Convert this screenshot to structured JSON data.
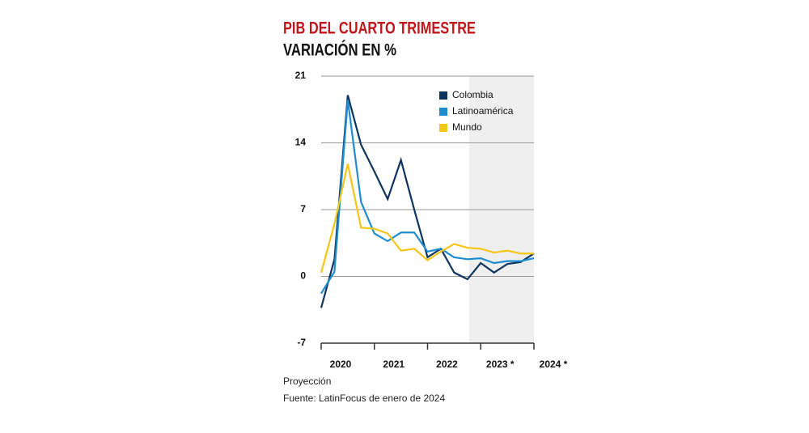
{
  "chart_data": {
    "type": "line",
    "title": "PIB DEL CUARTO TRIMESTRE",
    "subtitle": "VARIACIÓN EN %",
    "categories": [
      null,
      null,
      null,
      null,
      null,
      null,
      null,
      null,
      null,
      null,
      null,
      null,
      null,
      null,
      null,
      null,
      null
    ],
    "year_labels": [
      "2020",
      "2021",
      "2022",
      "2023 *",
      "2024 *"
    ],
    "series": [
      {
        "name": "Colombia",
        "color": "#0d3560",
        "values": [
          -3.3,
          1.8,
          19.0,
          13.8,
          11.0,
          8.1,
          12.2,
          7.0,
          2.0,
          2.9,
          0.4,
          -0.3,
          1.4,
          0.4,
          1.3,
          1.5,
          2.4
        ]
      },
      {
        "name": "Latinoamérica",
        "color": "#1f8ccf",
        "values": [
          -1.8,
          0.5,
          18.5,
          7.8,
          4.5,
          3.7,
          4.6,
          4.6,
          2.6,
          2.9,
          2.0,
          1.8,
          1.9,
          1.4,
          1.6,
          1.6,
          1.9
        ]
      },
      {
        "name": "Mundo",
        "color": "#f5c518",
        "values": [
          0.4,
          5.5,
          11.8,
          5.1,
          5.0,
          4.5,
          2.7,
          2.9,
          1.7,
          2.6,
          3.4,
          3.0,
          2.9,
          2.5,
          2.7,
          2.4,
          2.4
        ]
      }
    ],
    "ylim": [
      -7,
      21
    ],
    "yticks": [
      -7,
      0,
      7,
      14,
      21
    ],
    "grid": true,
    "notes": [
      "Proyección",
      "Fuente: LatinFocus de enero de 2024"
    ]
  }
}
